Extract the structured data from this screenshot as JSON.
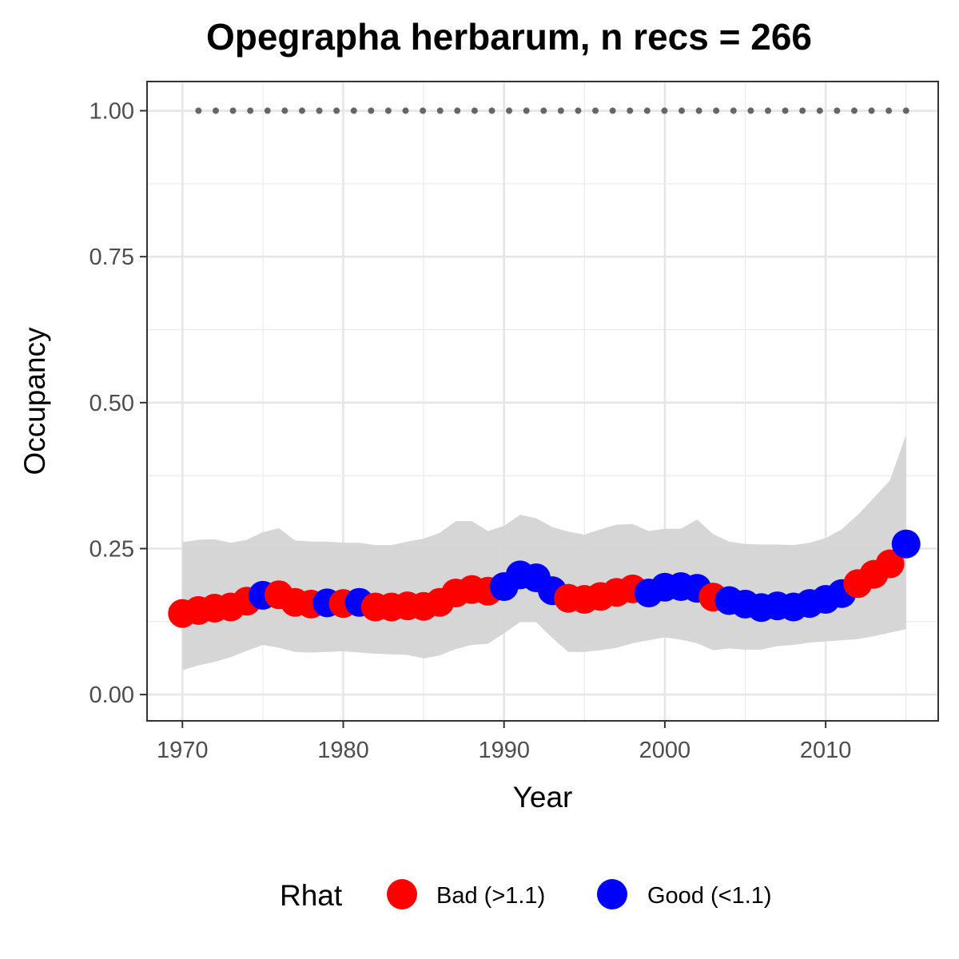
{
  "chart_data": {
    "type": "scatter",
    "title": "Opegrapha herbarum, n recs = 266",
    "xlabel": "Year",
    "ylabel": "Occupancy",
    "xlim": [
      1967.8,
      2017
    ],
    "ylim": [
      -0.045,
      1.05
    ],
    "x_ticks": [
      1970,
      1980,
      1990,
      2000,
      2010
    ],
    "x_tick_labels": [
      "1970",
      "1980",
      "1990",
      "2000",
      "2010"
    ],
    "y_ticks": [
      0,
      0.25,
      0.5,
      0.75,
      1
    ],
    "y_tick_labels": [
      "0.00",
      "0.25",
      "0.50",
      "0.75",
      "1.00"
    ],
    "y_minor_ticks": [
      0.125,
      0.375,
      0.625,
      0.875
    ],
    "x_minor_ticks": [
      1975,
      1985,
      1995,
      2005,
      2015
    ],
    "grid": true,
    "legend": {
      "title": "Rhat",
      "position": "bottom",
      "entries": [
        {
          "label": "Bad (>1.1)",
          "color": "#ff0000"
        },
        {
          "label": "Good (<1.1)",
          "color": "#0000ff"
        }
      ]
    },
    "colors": {
      "Bad (>1.1)": "#ff0000",
      "Good (<1.1)": "#0000ff",
      "ribbon": "#d4d4d4",
      "dotted_line": "#666666"
    },
    "years": [
      1970,
      1971,
      1972,
      1973,
      1974,
      1975,
      1976,
      1977,
      1978,
      1979,
      1980,
      1981,
      1982,
      1983,
      1984,
      1985,
      1986,
      1987,
      1988,
      1989,
      1990,
      1991,
      1992,
      1993,
      1994,
      1995,
      1996,
      1997,
      1998,
      1999,
      2000,
      2001,
      2002,
      2003,
      2004,
      2005,
      2006,
      2007,
      2008,
      2009,
      2010,
      2011,
      2012,
      2013,
      2014,
      2015
    ],
    "occupancy": [
      0.139,
      0.144,
      0.148,
      0.15,
      0.16,
      0.17,
      0.171,
      0.158,
      0.155,
      0.157,
      0.156,
      0.158,
      0.15,
      0.15,
      0.152,
      0.151,
      0.158,
      0.174,
      0.18,
      0.177,
      0.185,
      0.205,
      0.2,
      0.178,
      0.165,
      0.163,
      0.168,
      0.175,
      0.181,
      0.174,
      0.184,
      0.185,
      0.182,
      0.167,
      0.161,
      0.155,
      0.149,
      0.152,
      0.15,
      0.156,
      0.163,
      0.173,
      0.19,
      0.206,
      0.224,
      0.258
    ],
    "rhat": [
      "Bad",
      "Bad",
      "Bad",
      "Bad",
      "Bad",
      "Good",
      "Bad",
      "Bad",
      "Bad",
      "Good",
      "Bad",
      "Good",
      "Bad",
      "Bad",
      "Bad",
      "Bad",
      "Bad",
      "Bad",
      "Bad",
      "Bad",
      "Good",
      "Good",
      "Good",
      "Good",
      "Bad",
      "Bad",
      "Bad",
      "Bad",
      "Bad",
      "Good",
      "Good",
      "Good",
      "Good",
      "Bad",
      "Good",
      "Good",
      "Good",
      "Good",
      "Good",
      "Good",
      "Good",
      "Good",
      "Bad",
      "Bad",
      "Bad",
      "Good"
    ],
    "lower": [
      0.042,
      0.05,
      0.056,
      0.064,
      0.075,
      0.085,
      0.08,
      0.073,
      0.072,
      0.073,
      0.074,
      0.072,
      0.07,
      0.069,
      0.068,
      0.062,
      0.067,
      0.078,
      0.085,
      0.087,
      0.105,
      0.124,
      0.124,
      0.097,
      0.073,
      0.073,
      0.076,
      0.08,
      0.088,
      0.093,
      0.098,
      0.094,
      0.088,
      0.076,
      0.079,
      0.077,
      0.077,
      0.083,
      0.085,
      0.089,
      0.091,
      0.093,
      0.095,
      0.1,
      0.106,
      0.112
    ],
    "upper": [
      0.261,
      0.265,
      0.266,
      0.26,
      0.265,
      0.278,
      0.285,
      0.264,
      0.262,
      0.262,
      0.26,
      0.26,
      0.256,
      0.256,
      0.262,
      0.267,
      0.277,
      0.297,
      0.297,
      0.28,
      0.289,
      0.308,
      0.302,
      0.287,
      0.279,
      0.274,
      0.283,
      0.291,
      0.292,
      0.28,
      0.284,
      0.284,
      0.3,
      0.275,
      0.262,
      0.258,
      0.257,
      0.257,
      0.256,
      0.26,
      0.268,
      0.283,
      0.308,
      0.337,
      0.367,
      0.445
    ],
    "reference_line": {
      "y": 1.0,
      "x_from": 1971,
      "x_to": 2015,
      "style": "dotted"
    }
  }
}
